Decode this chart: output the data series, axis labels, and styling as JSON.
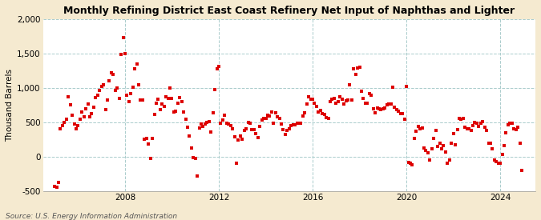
{
  "title": "Monthly Refining District East Coast Refinery Net Input of Naphthas and Lighter",
  "ylabel": "Thousand Barrels",
  "source": "Source: U.S. Energy Information Administration",
  "ylim": [
    -500,
    2000
  ],
  "yticks": [
    -500,
    0,
    500,
    1000,
    1500,
    2000
  ],
  "xticks": [
    2008,
    2012,
    2016,
    2020,
    2024
  ],
  "outer_bg": "#f5ead0",
  "plot_bg": "#ffffff",
  "dot_color": "#dd0000",
  "marker": "s",
  "marker_size": 3.5,
  "xlim_left": 2004.5,
  "xlim_right": 2025.5,
  "data_x": [
    2005.0,
    2005.083,
    2005.167,
    2005.25,
    2005.333,
    2005.417,
    2005.5,
    2005.583,
    2005.667,
    2005.75,
    2005.833,
    2005.917,
    2006.0,
    2006.083,
    2006.167,
    2006.25,
    2006.333,
    2006.417,
    2006.5,
    2006.583,
    2006.667,
    2006.75,
    2006.833,
    2006.917,
    2007.0,
    2007.083,
    2007.167,
    2007.25,
    2007.333,
    2007.417,
    2007.5,
    2007.583,
    2007.667,
    2007.75,
    2007.833,
    2007.917,
    2008.0,
    2008.083,
    2008.167,
    2008.25,
    2008.333,
    2008.417,
    2008.5,
    2008.583,
    2008.667,
    2008.75,
    2008.833,
    2008.917,
    2009.0,
    2009.083,
    2009.167,
    2009.25,
    2009.333,
    2009.417,
    2009.5,
    2009.583,
    2009.667,
    2009.75,
    2009.833,
    2009.917,
    2010.0,
    2010.083,
    2010.167,
    2010.25,
    2010.333,
    2010.417,
    2010.5,
    2010.583,
    2010.667,
    2010.75,
    2010.833,
    2010.917,
    2011.0,
    2011.083,
    2011.167,
    2011.25,
    2011.333,
    2011.417,
    2011.5,
    2011.583,
    2011.667,
    2011.75,
    2011.833,
    2011.917,
    2012.0,
    2012.083,
    2012.167,
    2012.25,
    2012.333,
    2012.417,
    2012.5,
    2012.583,
    2012.667,
    2012.75,
    2012.833,
    2012.917,
    2013.0,
    2013.083,
    2013.167,
    2013.25,
    2013.333,
    2013.417,
    2013.5,
    2013.583,
    2013.667,
    2013.75,
    2013.833,
    2013.917,
    2014.0,
    2014.083,
    2014.167,
    2014.25,
    2014.333,
    2014.417,
    2014.5,
    2014.583,
    2014.667,
    2014.75,
    2014.833,
    2014.917,
    2015.0,
    2015.083,
    2015.167,
    2015.25,
    2015.333,
    2015.417,
    2015.5,
    2015.583,
    2015.667,
    2015.75,
    2015.833,
    2015.917,
    2016.0,
    2016.083,
    2016.167,
    2016.25,
    2016.333,
    2016.417,
    2016.5,
    2016.583,
    2016.667,
    2016.75,
    2016.833,
    2016.917,
    2017.0,
    2017.083,
    2017.167,
    2017.25,
    2017.333,
    2017.417,
    2017.5,
    2017.583,
    2017.667,
    2017.75,
    2017.833,
    2017.917,
    2018.0,
    2018.083,
    2018.167,
    2018.25,
    2018.333,
    2018.417,
    2018.5,
    2018.583,
    2018.667,
    2018.75,
    2018.833,
    2018.917,
    2019.0,
    2019.083,
    2019.167,
    2019.25,
    2019.333,
    2019.417,
    2019.5,
    2019.583,
    2019.667,
    2019.75,
    2019.833,
    2019.917,
    2020.0,
    2020.083,
    2020.167,
    2020.25,
    2020.333,
    2020.417,
    2020.5,
    2020.583,
    2020.667,
    2020.75,
    2020.833,
    2020.917,
    2021.0,
    2021.083,
    2021.167,
    2021.25,
    2021.333,
    2021.417,
    2021.5,
    2021.583,
    2021.667,
    2021.75,
    2021.833,
    2021.917,
    2022.0,
    2022.083,
    2022.167,
    2022.25,
    2022.333,
    2022.417,
    2022.5,
    2022.583,
    2022.667,
    2022.75,
    2022.833,
    2022.917,
    2023.0,
    2023.083,
    2023.167,
    2023.25,
    2023.333,
    2023.417,
    2023.5,
    2023.583,
    2023.667,
    2023.75,
    2023.833,
    2023.917,
    2024.0,
    2024.083,
    2024.167,
    2024.25,
    2024.333,
    2024.417,
    2024.5,
    2024.583,
    2024.667,
    2024.75,
    2024.833,
    2024.917
  ],
  "data_y": [
    -430,
    -450,
    -380,
    400,
    450,
    500,
    550,
    870,
    750,
    600,
    480,
    400,
    450,
    550,
    650,
    580,
    700,
    770,
    580,
    630,
    720,
    860,
    890,
    960,
    1020,
    1050,
    680,
    820,
    1100,
    1220,
    1200,
    960,
    1000,
    850,
    1490,
    1730,
    1500,
    890,
    800,
    920,
    1010,
    1280,
    1350,
    1050,
    820,
    820,
    250,
    260,
    180,
    -20,
    270,
    620,
    780,
    830,
    680,
    760,
    730,
    870,
    850,
    1000,
    850,
    650,
    660,
    780,
    860,
    800,
    650,
    550,
    430,
    300,
    130,
    -10,
    -30,
    -280,
    420,
    470,
    440,
    480,
    500,
    510,
    360,
    640,
    970,
    1280,
    1310,
    490,
    530,
    600,
    490,
    480,
    450,
    400,
    290,
    -90,
    240,
    300,
    250,
    380,
    410,
    500,
    490,
    390,
    390,
    330,
    280,
    440,
    530,
    560,
    560,
    600,
    590,
    650,
    490,
    640,
    580,
    560,
    480,
    390,
    320,
    380,
    400,
    450,
    460,
    460,
    490,
    490,
    490,
    590,
    640,
    760,
    870,
    830,
    840,
    780,
    730,
    650,
    670,
    630,
    610,
    570,
    560,
    800,
    830,
    850,
    780,
    800,
    870,
    830,
    760,
    810,
    820,
    1050,
    820,
    1280,
    1200,
    1290,
    1300,
    950,
    850,
    780,
    780,
    920,
    890,
    700,
    640,
    710,
    700,
    680,
    700,
    710,
    750,
    760,
    760,
    1010,
    720,
    680,
    660,
    630,
    630,
    550,
    1020,
    -80,
    -100,
    -120,
    260,
    370,
    440,
    410,
    420,
    130,
    90,
    60,
    -50,
    110,
    270,
    380,
    150,
    200,
    110,
    160,
    70,
    -100,
    -50,
    200,
    340,
    170,
    390,
    560,
    540,
    560,
    430,
    410,
    400,
    380,
    450,
    500,
    490,
    440,
    490,
    510,
    430,
    380,
    190,
    200,
    110,
    -50,
    -70,
    -100,
    -90,
    30,
    160,
    350,
    460,
    490,
    490,
    400,
    390,
    430,
    200,
    -200
  ]
}
